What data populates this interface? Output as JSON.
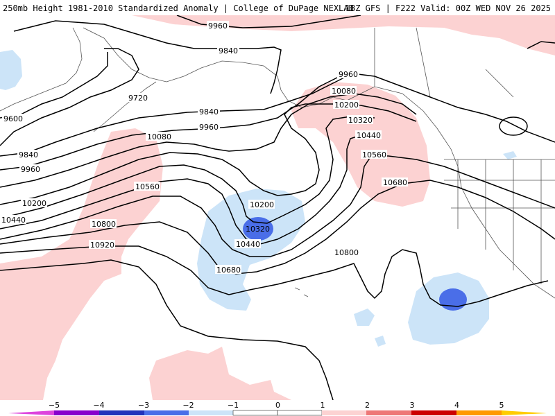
{
  "header": {
    "title": "250mb Height 1981-2010 Standardized Anomaly | College of DuPage NEXLAB",
    "run_info": "18Z GFS | F222 Valid: 00Z WED NOV 26 2025"
  },
  "contours": {
    "c9960_top": "9960",
    "c9840_n": "9840",
    "c9720": "9720",
    "c9600": "9600",
    "c9840_w": "9840",
    "c9960_w": "9960",
    "c9840_mid": "9840",
    "c9960_mid": "9960",
    "c10080_w": "10080",
    "c10200_w": "10200",
    "c10440_w": "10440",
    "c10560_w": "10560",
    "c10800_w": "10800",
    "c10920_w": "10920",
    "c10200_low": "10200",
    "c10320_low": "10320",
    "c10440_low": "10440",
    "c10680_low": "10680",
    "c9960_e": "9960",
    "c10080_e": "10080",
    "c10200_e": "10200",
    "c10320_e": "10320",
    "c10440_e": "10440",
    "c10560_e": "10560",
    "c10680_e": "10680",
    "c10800_s": "10800"
  },
  "legend": {
    "ticks": [
      "−5",
      "−4",
      "−3",
      "−2",
      "−1",
      "0",
      "1",
      "2",
      "3",
      "4",
      "5"
    ]
  },
  "colors": {
    "neg_weak": "#cce4f8",
    "neg_strong": "#4a6ee8",
    "pos_weak": "#fcd2d2",
    "contour": "#000000",
    "coast": "#555555"
  }
}
